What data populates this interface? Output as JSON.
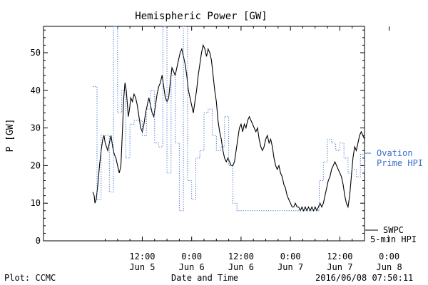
{
  "chart_data": {
    "type": "line",
    "title": "Hemispheric Power [GW]",
    "ylabel": "P [GW]",
    "xlabel": "Date and Time",
    "ylim": [
      0,
      57
    ],
    "xlim": [
      -12,
      66
    ],
    "x_unit": "hours from 2016-06-05 00:00 UT",
    "yticks": [
      0,
      10,
      20,
      30,
      40,
      50
    ],
    "xticks": [
      {
        "x": 12,
        "time": "12:00",
        "date": "Jun 5"
      },
      {
        "x": 24,
        "time": "0:00",
        "date": "Jun 6"
      },
      {
        "x": 36,
        "time": "12:00",
        "date": "Jun 6"
      },
      {
        "x": 48,
        "time": "0:00",
        "date": "Jun 7"
      },
      {
        "x": 60,
        "time": "12:00",
        "date": "Jun 7"
      },
      {
        "x": 72,
        "time": "0:00",
        "date": "Jun 8"
      }
    ],
    "series": [
      {
        "name": "SWPC 5-min HPI",
        "color": "#000000",
        "style": "solid",
        "points": [
          [
            0,
            13
          ],
          [
            0.3,
            12
          ],
          [
            0.5,
            10
          ],
          [
            0.8,
            11
          ],
          [
            1.2,
            15
          ],
          [
            1.6,
            20
          ],
          [
            2,
            24
          ],
          [
            2.4,
            27
          ],
          [
            2.7,
            28
          ],
          [
            3,
            26
          ],
          [
            3.3,
            25
          ],
          [
            3.6,
            24
          ],
          [
            4,
            26
          ],
          [
            4.4,
            28
          ],
          [
            4.8,
            25
          ],
          [
            5.2,
            23
          ],
          [
            5.6,
            22
          ],
          [
            6,
            20
          ],
          [
            6.4,
            18
          ],
          [
            6.8,
            20
          ],
          [
            7.2,
            30
          ],
          [
            7.5,
            38
          ],
          [
            7.8,
            42
          ],
          [
            8.1,
            40
          ],
          [
            8.4,
            36
          ],
          [
            8.6,
            33
          ],
          [
            8.9,
            35
          ],
          [
            9.2,
            38
          ],
          [
            9.6,
            37
          ],
          [
            10,
            39
          ],
          [
            10.4,
            38
          ],
          [
            10.8,
            36
          ],
          [
            11.2,
            33
          ],
          [
            11.6,
            30
          ],
          [
            12,
            29
          ],
          [
            12.4,
            31
          ],
          [
            12.8,
            34
          ],
          [
            13.2,
            36
          ],
          [
            13.6,
            38
          ],
          [
            14,
            36
          ],
          [
            14.4,
            34
          ],
          [
            14.8,
            33
          ],
          [
            15.2,
            36
          ],
          [
            15.6,
            39
          ],
          [
            16,
            41
          ],
          [
            16.4,
            42
          ],
          [
            16.8,
            44
          ],
          [
            17.2,
            41
          ],
          [
            17.6,
            38
          ],
          [
            18,
            37
          ],
          [
            18.4,
            38
          ],
          [
            18.8,
            42
          ],
          [
            19.2,
            46
          ],
          [
            19.6,
            45
          ],
          [
            20,
            44
          ],
          [
            20.4,
            46
          ],
          [
            20.8,
            48
          ],
          [
            21.2,
            50
          ],
          [
            21.6,
            51
          ],
          [
            22,
            49
          ],
          [
            22.4,
            47
          ],
          [
            22.8,
            44
          ],
          [
            23.2,
            40
          ],
          [
            23.6,
            38
          ],
          [
            24,
            36
          ],
          [
            24.4,
            34
          ],
          [
            24.8,
            37
          ],
          [
            25.2,
            40
          ],
          [
            25.6,
            44
          ],
          [
            26,
            47
          ],
          [
            26.4,
            50
          ],
          [
            26.8,
            52
          ],
          [
            27.2,
            51
          ],
          [
            27.6,
            49
          ],
          [
            28,
            51
          ],
          [
            28.4,
            50
          ],
          [
            28.8,
            48
          ],
          [
            29.2,
            44
          ],
          [
            29.6,
            40
          ],
          [
            30,
            37
          ],
          [
            30.4,
            32
          ],
          [
            30.8,
            29
          ],
          [
            31.2,
            27
          ],
          [
            31.6,
            24
          ],
          [
            32,
            22
          ],
          [
            32.4,
            21
          ],
          [
            32.8,
            22
          ],
          [
            33.2,
            21
          ],
          [
            33.6,
            20
          ],
          [
            34,
            20
          ],
          [
            34.4,
            21
          ],
          [
            34.8,
            24
          ],
          [
            35.2,
            27
          ],
          [
            35.6,
            30
          ],
          [
            36,
            31
          ],
          [
            36.4,
            29
          ],
          [
            36.8,
            31
          ],
          [
            37.2,
            30
          ],
          [
            37.6,
            32
          ],
          [
            38,
            33
          ],
          [
            38.4,
            32
          ],
          [
            38.8,
            31
          ],
          [
            39.2,
            30
          ],
          [
            39.6,
            29
          ],
          [
            40,
            30
          ],
          [
            40.4,
            27
          ],
          [
            40.8,
            25
          ],
          [
            41.2,
            24
          ],
          [
            41.6,
            25
          ],
          [
            42,
            27
          ],
          [
            42.4,
            28
          ],
          [
            42.8,
            26
          ],
          [
            43.2,
            27
          ],
          [
            43.6,
            25
          ],
          [
            44,
            22
          ],
          [
            44.4,
            20
          ],
          [
            44.8,
            19
          ],
          [
            45.2,
            20
          ],
          [
            45.6,
            18
          ],
          [
            46,
            17
          ],
          [
            46.4,
            15
          ],
          [
            46.8,
            14
          ],
          [
            47.2,
            12
          ],
          [
            47.6,
            11
          ],
          [
            48,
            10
          ],
          [
            48.4,
            9
          ],
          [
            48.8,
            9
          ],
          [
            49.2,
            10
          ],
          [
            49.6,
            9
          ],
          [
            50,
            9
          ],
          [
            50.4,
            8
          ],
          [
            50.8,
            9
          ],
          [
            51.2,
            8
          ],
          [
            51.6,
            9
          ],
          [
            52,
            8
          ],
          [
            52.4,
            9
          ],
          [
            52.8,
            8
          ],
          [
            53.2,
            9
          ],
          [
            53.6,
            8
          ],
          [
            54,
            9
          ],
          [
            54.4,
            8
          ],
          [
            54.8,
            9
          ],
          [
            55.2,
            10
          ],
          [
            55.6,
            9
          ],
          [
            56,
            10
          ],
          [
            56.4,
            12
          ],
          [
            56.8,
            14
          ],
          [
            57.2,
            16
          ],
          [
            57.6,
            17
          ],
          [
            58,
            19
          ],
          [
            58.4,
            20
          ],
          [
            58.8,
            21
          ],
          [
            59.2,
            20
          ],
          [
            59.6,
            19
          ],
          [
            60,
            18
          ],
          [
            60.4,
            17
          ],
          [
            60.8,
            15
          ],
          [
            61.2,
            12
          ],
          [
            61.6,
            10
          ],
          [
            62,
            9
          ],
          [
            62.4,
            12
          ],
          [
            62.8,
            17
          ],
          [
            63.2,
            22
          ],
          [
            63.6,
            25
          ],
          [
            64,
            24
          ],
          [
            64.4,
            26
          ],
          [
            64.8,
            28
          ],
          [
            65.2,
            29
          ],
          [
            65.6,
            28
          ],
          [
            66,
            27
          ]
        ]
      },
      {
        "name": "Ovation Prime HPI",
        "color": "#3a6ec8",
        "style": "dotted-step",
        "points": [
          [
            0,
            41
          ],
          [
            1,
            11
          ],
          [
            2,
            28
          ],
          [
            3,
            28
          ],
          [
            4,
            13
          ],
          [
            5,
            57
          ],
          [
            6,
            34
          ],
          [
            7,
            40
          ],
          [
            8,
            22
          ],
          [
            9,
            31
          ],
          [
            10,
            32
          ],
          [
            11,
            32
          ],
          [
            12,
            28
          ],
          [
            13,
            35
          ],
          [
            14,
            40
          ],
          [
            15,
            26
          ],
          [
            16,
            25
          ],
          [
            17,
            57
          ],
          [
            18,
            18
          ],
          [
            19,
            44
          ],
          [
            20,
            26
          ],
          [
            21,
            8
          ],
          [
            22,
            57
          ],
          [
            23,
            16
          ],
          [
            24,
            11
          ],
          [
            25,
            22
          ],
          [
            26,
            24
          ],
          [
            27,
            34
          ],
          [
            28,
            35
          ],
          [
            29,
            28
          ],
          [
            30,
            24
          ],
          [
            31,
            25
          ],
          [
            32,
            33
          ],
          [
            33,
            20
          ],
          [
            34,
            10
          ],
          [
            35,
            8
          ],
          [
            36,
            8
          ],
          [
            37,
            8
          ],
          [
            38,
            8
          ],
          [
            39,
            8
          ],
          [
            40,
            8
          ],
          [
            41,
            8
          ],
          [
            42,
            8
          ],
          [
            43,
            8
          ],
          [
            44,
            8
          ],
          [
            45,
            8
          ],
          [
            46,
            8
          ],
          [
            47,
            8
          ],
          [
            48,
            8
          ],
          [
            49,
            8
          ],
          [
            50,
            8
          ],
          [
            51,
            8
          ],
          [
            52,
            8
          ],
          [
            53,
            8
          ],
          [
            54,
            8
          ],
          [
            55,
            16
          ],
          [
            56,
            21
          ],
          [
            57,
            27
          ],
          [
            58,
            26
          ],
          [
            59,
            24
          ],
          [
            60,
            26
          ],
          [
            61,
            22
          ],
          [
            62,
            18
          ],
          [
            63,
            19
          ],
          [
            64,
            17
          ],
          [
            65,
            23
          ],
          [
            66,
            18
          ]
        ]
      }
    ],
    "legend": [
      {
        "line1": "— Ovation",
        "line2": "Prime HPI",
        "color": "#3a6ec8"
      },
      {
        "line1": "SWPC",
        "line2": "5-min HPI",
        "color": "#000000"
      }
    ],
    "footer_left": "Plot: CCMC",
    "footer_right": "2016/06/08 07:50:11"
  }
}
